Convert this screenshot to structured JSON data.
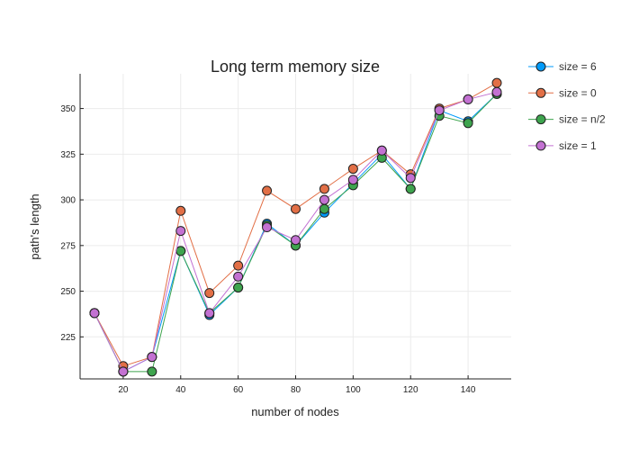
{
  "chart_data": {
    "type": "line",
    "title": "Long term memory size",
    "xlabel": "number of nodes",
    "ylabel": "path's length",
    "xlim": [
      5,
      155
    ],
    "ylim": [
      202,
      369
    ],
    "xticks": [
      20,
      40,
      60,
      80,
      100,
      120,
      140
    ],
    "yticks": [
      225,
      250,
      275,
      300,
      325,
      350
    ],
    "grid": true,
    "legend_position": "top-right, outside plot",
    "x": [
      10,
      20,
      30,
      40,
      50,
      60,
      70,
      80,
      90,
      100,
      110,
      120,
      130,
      140,
      150
    ],
    "series": [
      {
        "name": "size = 6",
        "color": "#009AFA",
        "values": [
          238,
          206,
          214,
          272,
          237,
          252,
          287,
          275,
          293,
          309,
          325,
          306,
          349,
          343,
          358
        ]
      },
      {
        "name": "size = 0",
        "color": "#E26F46",
        "values": [
          238,
          209,
          214,
          294,
          249,
          264,
          305,
          295,
          306,
          317,
          327,
          314,
          350,
          355,
          364
        ]
      },
      {
        "name": "size = n/2",
        "color": "#3EA44E",
        "values": [
          238,
          206,
          206,
          272,
          238,
          252,
          286,
          275,
          295,
          308,
          323,
          306,
          346,
          342,
          358
        ]
      },
      {
        "name": "size = 1",
        "color": "#C371D2",
        "values": [
          238,
          206,
          214,
          283,
          238,
          258,
          285,
          278,
          300,
          311,
          327,
          312,
          349,
          355,
          359
        ]
      }
    ]
  }
}
